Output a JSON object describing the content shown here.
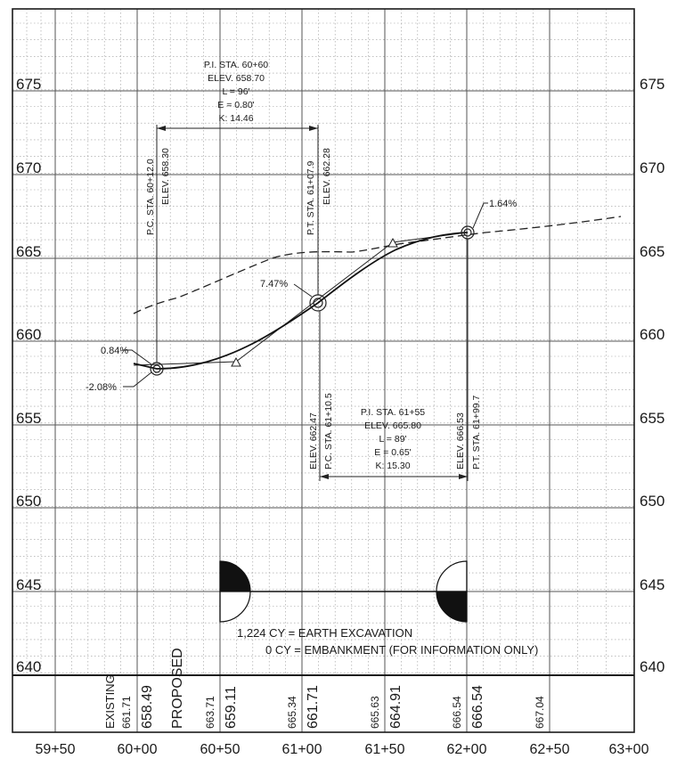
{
  "elevation_labels": [
    "675",
    "670",
    "665",
    "660",
    "655",
    "650",
    "645",
    "640"
  ],
  "station_labels": [
    "59+50",
    "60+00",
    "60+50",
    "61+00",
    "61+50",
    "62+00",
    "62+50",
    "63+00"
  ],
  "table": {
    "existing_label": "EXISTING",
    "proposed_label": "PROPOSED",
    "existing_values": [
      "661.71",
      "663.71",
      "665.34",
      "665.63",
      "666.54",
      "667.04"
    ],
    "proposed_values": [
      "658.49",
      "659.11",
      "661.71",
      "664.91",
      "666.54"
    ]
  },
  "curve1": {
    "pi_lines": [
      "P.I. STA. 60+60",
      "ELEV.  658.70",
      "L = 96'",
      "E = 0.80'",
      "K: 14.46"
    ],
    "pc_sta": "P.C. STA. 60+12.0",
    "pc_elev": "ELEV. 658.30",
    "pt_sta": "P.T. STA. 61+07.9",
    "pt_elev": "ELEV. 662.28"
  },
  "curve2": {
    "pi_lines": [
      "P.I. STA. 61+55",
      "ELEV.  665.80",
      "L = 89'",
      "E = 0.65'",
      "K: 15.30"
    ],
    "pc_sta": "P.C. STA. 61+10.5",
    "pc_elev": "ELEV. 662.47",
    "pt_sta": "P.T. STA. 61+99.7",
    "pt_elev": "ELEV. 666.53"
  },
  "grades": {
    "g_start": "-2.08%",
    "g_pc1": "0.84%",
    "g_mid": "7.47%",
    "g_end": "1.64%"
  },
  "earthwork": {
    "line1": "1,224 CY = EARTH EXCAVATION",
    "line2": "0 CY = EMBANKMENT (FOR INFORMATION ONLY)"
  }
}
